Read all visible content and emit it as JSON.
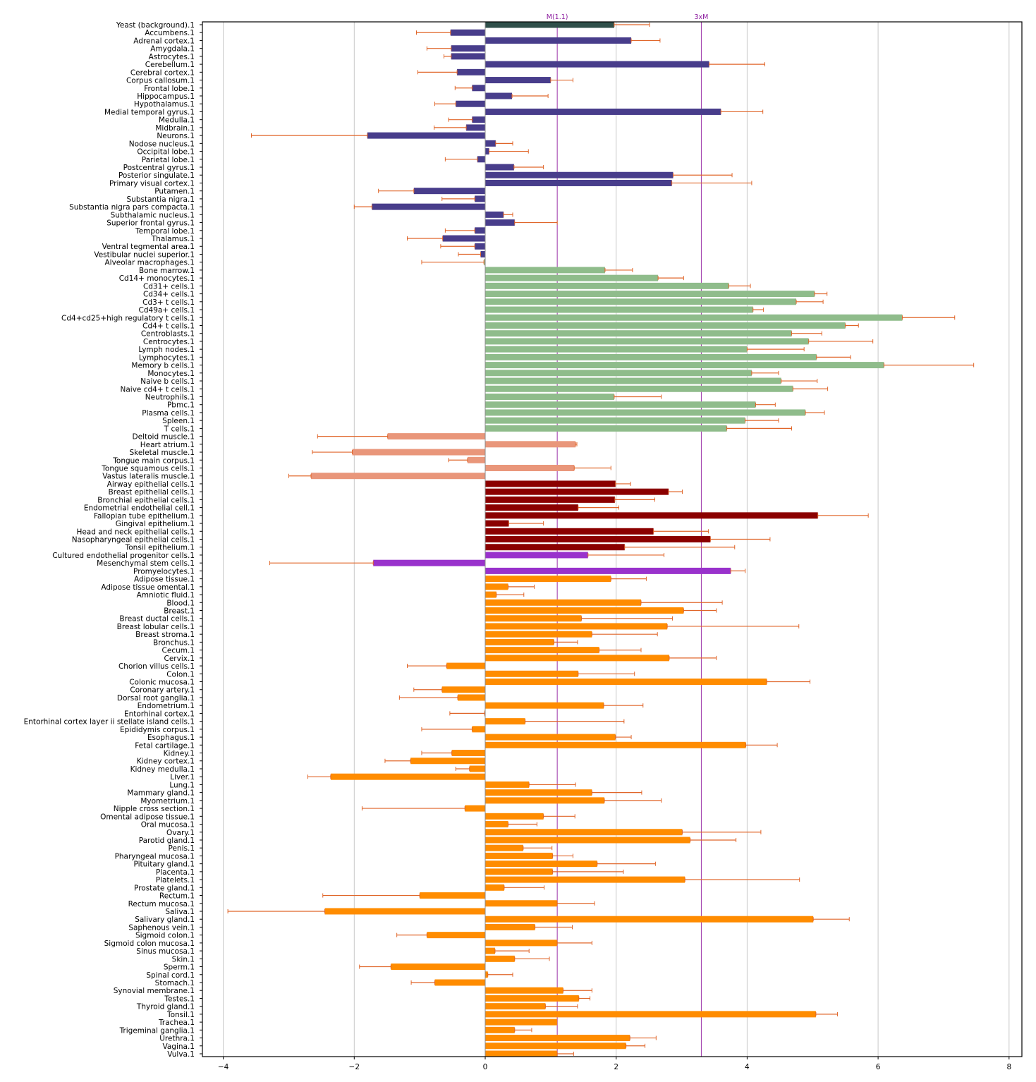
{
  "chart_data": {
    "type": "bar",
    "orientation": "horizontal",
    "title": "",
    "xlabel": "",
    "ylabel": "",
    "xlim": [
      -4.3,
      8.2
    ],
    "xticks": [
      -4,
      -2,
      0,
      2,
      4,
      6,
      8
    ],
    "xtick_labels": [
      "−4",
      "−2",
      "0",
      "2",
      "4",
      "6",
      "8"
    ],
    "grid": "vertical",
    "reference_lines": [
      {
        "label": "M(1.1)",
        "value": 1.1,
        "color": "#9b30a8"
      },
      {
        "label": "3xM",
        "value": 3.3,
        "color": "#9b30a8"
      }
    ],
    "error_bar_color": "#e0662a",
    "group_colors": {
      "background": "#2f4f4a",
      "brain": "#483d8b",
      "immune": "#8fbc8b",
      "muscle": "#e9967a",
      "epithelial": "#8b0000",
      "stem": "#9932cc",
      "tissue": "#ff8c00"
    },
    "bars": [
      {
        "label": "Yeast (background).1",
        "value": 1.97,
        "err": 0.54,
        "group": "background"
      },
      {
        "label": "Accumbens.1",
        "value": -0.53,
        "err": 0.52,
        "group": "brain"
      },
      {
        "label": "Adrenal cortex.1",
        "value": 2.23,
        "err": 0.44,
        "group": "brain"
      },
      {
        "label": "Amygdala.1",
        "value": -0.52,
        "err": 0.37,
        "group": "brain"
      },
      {
        "label": "Astrocytes.1",
        "value": -0.52,
        "err": 0.11,
        "group": "brain"
      },
      {
        "label": "Cerebellum.1",
        "value": 3.42,
        "err": 0.85,
        "group": "brain"
      },
      {
        "label": "Cerebral cortex.1",
        "value": -0.43,
        "err": 0.6,
        "group": "brain"
      },
      {
        "label": "Corpus callosum.1",
        "value": 1.0,
        "err": 0.34,
        "group": "brain"
      },
      {
        "label": "Frontal lobe.1",
        "value": -0.2,
        "err": 0.26,
        "group": "brain"
      },
      {
        "label": "Hippocampus.1",
        "value": 0.41,
        "err": 0.55,
        "group": "brain"
      },
      {
        "label": "Hypothalamus.1",
        "value": -0.45,
        "err": 0.32,
        "group": "brain"
      },
      {
        "label": "Medial temporal gyrus.1",
        "value": 3.6,
        "err": 0.64,
        "group": "brain"
      },
      {
        "label": "Medulla.1",
        "value": -0.2,
        "err": 0.36,
        "group": "brain"
      },
      {
        "label": "Midbrain.1",
        "value": -0.29,
        "err": 0.49,
        "group": "brain"
      },
      {
        "label": "Neurons.1",
        "value": -1.8,
        "err": 1.77,
        "group": "brain"
      },
      {
        "label": "Nodose nucleus.1",
        "value": 0.16,
        "err": 0.26,
        "group": "brain"
      },
      {
        "label": "Occipital lobe.1",
        "value": 0.06,
        "err": 0.6,
        "group": "brain"
      },
      {
        "label": "Parietal lobe.1",
        "value": -0.12,
        "err": 0.49,
        "group": "brain"
      },
      {
        "label": "Postcentral gyrus.1",
        "value": 0.44,
        "err": 0.45,
        "group": "brain"
      },
      {
        "label": "Posterior singulate.1",
        "value": 2.87,
        "err": 0.9,
        "group": "brain"
      },
      {
        "label": "Primary visual cortex.1",
        "value": 2.85,
        "err": 1.22,
        "group": "brain"
      },
      {
        "label": "Putamen.1",
        "value": -1.09,
        "err": 0.54,
        "group": "brain"
      },
      {
        "label": "Substantia nigra.1",
        "value": -0.16,
        "err": 0.5,
        "group": "brain"
      },
      {
        "label": "Substantia nigra pars compacta.1",
        "value": -1.73,
        "err": 0.27,
        "group": "brain"
      },
      {
        "label": "Subthalamic nucleus.1",
        "value": 0.28,
        "err": 0.14,
        "group": "brain"
      },
      {
        "label": "Superior frontal gyrus.1",
        "value": 0.45,
        "err": 0.65,
        "group": "brain"
      },
      {
        "label": "Temporal lobe.1",
        "value": -0.16,
        "err": 0.45,
        "group": "brain"
      },
      {
        "label": "Thalamus.1",
        "value": -0.65,
        "err": 0.54,
        "group": "brain"
      },
      {
        "label": "Ventral tegmental area.1",
        "value": -0.16,
        "err": 0.52,
        "group": "brain"
      },
      {
        "label": "Vestibular nuclei superior.1",
        "value": -0.07,
        "err": 0.34,
        "group": "brain"
      },
      {
        "label": "Alveolar macrophages.1",
        "value": -0.02,
        "err": 0.95,
        "group": "immune"
      },
      {
        "label": "Bone marrow.1",
        "value": 1.83,
        "err": 0.42,
        "group": "immune"
      },
      {
        "label": "Cd14+ monocytes.1",
        "value": 2.64,
        "err": 0.39,
        "group": "immune"
      },
      {
        "label": "Cd31+ cells.1",
        "value": 3.72,
        "err": 0.33,
        "group": "immune"
      },
      {
        "label": "Cd34+ cells.1",
        "value": 5.03,
        "err": 0.19,
        "group": "immune"
      },
      {
        "label": "Cd3+ t cells.1",
        "value": 4.75,
        "err": 0.41,
        "group": "immune"
      },
      {
        "label": "Cd49a+ cells.1",
        "value": 4.09,
        "err": 0.16,
        "group": "immune"
      },
      {
        "label": "Cd4+cd25+high regulatory t cells.1",
        "value": 6.37,
        "err": 0.8,
        "group": "immune"
      },
      {
        "label": "Cd4+ t cells.1",
        "value": 5.5,
        "err": 0.2,
        "group": "immune"
      },
      {
        "label": "Centroblasts.1",
        "value": 4.68,
        "err": 0.46,
        "group": "immune"
      },
      {
        "label": "Centrocytes.1",
        "value": 4.94,
        "err": 0.98,
        "group": "immune"
      },
      {
        "label": "Lymph nodes.1",
        "value": 4.0,
        "err": 0.87,
        "group": "immune"
      },
      {
        "label": "Lymphocytes.1",
        "value": 5.06,
        "err": 0.52,
        "group": "immune"
      },
      {
        "label": "Memory b cells.1",
        "value": 6.09,
        "err": 1.37,
        "group": "immune"
      },
      {
        "label": "Monocytes.1",
        "value": 4.07,
        "err": 0.41,
        "group": "immune"
      },
      {
        "label": "Naive b cells.1",
        "value": 4.52,
        "err": 0.55,
        "group": "immune"
      },
      {
        "label": "Naive cd4+ t cells.1",
        "value": 4.7,
        "err": 0.53,
        "group": "immune"
      },
      {
        "label": "Neutrophils.1",
        "value": 1.97,
        "err": 0.72,
        "group": "immune"
      },
      {
        "label": "Pbmc.1",
        "value": 4.13,
        "err": 0.3,
        "group": "immune"
      },
      {
        "label": "Plasma cells.1",
        "value": 4.89,
        "err": 0.29,
        "group": "immune"
      },
      {
        "label": "Spleen.1",
        "value": 3.97,
        "err": 0.51,
        "group": "immune"
      },
      {
        "label": "T cells.1",
        "value": 3.69,
        "err": 0.99,
        "group": "immune"
      },
      {
        "label": "Deltoid muscle.1",
        "value": -1.49,
        "err": 1.07,
        "group": "muscle"
      },
      {
        "label": "Heart atrium.1",
        "value": 1.38,
        "err": 0.02,
        "group": "muscle"
      },
      {
        "label": "Skeletal muscle.1",
        "value": -2.03,
        "err": 0.61,
        "group": "muscle"
      },
      {
        "label": "Tongue main corpus.1",
        "value": -0.27,
        "err": 0.29,
        "group": "muscle"
      },
      {
        "label": "Tongue squamous cells.1",
        "value": 1.36,
        "err": 0.56,
        "group": "muscle"
      },
      {
        "label": "Vastus lateralis muscle.1",
        "value": -2.66,
        "err": 0.34,
        "group": "muscle"
      },
      {
        "label": "Airway epithelial cells.1",
        "value": 1.99,
        "err": 0.23,
        "group": "epithelial"
      },
      {
        "label": "Breast epithelial cells.1",
        "value": 2.8,
        "err": 0.21,
        "group": "epithelial"
      },
      {
        "label": "Bronchial epithelial cells.1",
        "value": 1.98,
        "err": 0.61,
        "group": "epithelial"
      },
      {
        "label": "Endometrial endothelial cell.1",
        "value": 1.42,
        "err": 0.62,
        "group": "epithelial"
      },
      {
        "label": "Fallopian tube epithelium.1",
        "value": 5.08,
        "err": 0.77,
        "group": "epithelial"
      },
      {
        "label": "Gingival epithelium.1",
        "value": 0.36,
        "err": 0.53,
        "group": "epithelial"
      },
      {
        "label": "Head and neck epithelial cells.1",
        "value": 2.57,
        "err": 0.84,
        "group": "epithelial"
      },
      {
        "label": "Nasopharyngeal epithelial cells.1",
        "value": 3.44,
        "err": 0.91,
        "group": "epithelial"
      },
      {
        "label": "Tonsil epithelium.1",
        "value": 2.13,
        "err": 1.68,
        "group": "epithelial"
      },
      {
        "label": "Cultured endothelial progenitor cells.1",
        "value": 1.57,
        "err": 1.16,
        "group": "stem"
      },
      {
        "label": "Mesenchymal stem cells.1",
        "value": -1.71,
        "err": 1.58,
        "group": "stem"
      },
      {
        "label": "Promyelocytes.1",
        "value": 3.75,
        "err": 0.22,
        "group": "stem"
      },
      {
        "label": "Adipose tissue.1",
        "value": 1.92,
        "err": 0.54,
        "group": "tissue"
      },
      {
        "label": "Adipose tissue omental.1",
        "value": 0.35,
        "err": 0.4,
        "group": "tissue"
      },
      {
        "label": "Amniotic fluid.1",
        "value": 0.17,
        "err": 0.42,
        "group": "tissue"
      },
      {
        "label": "Blood.1",
        "value": 2.38,
        "err": 1.24,
        "group": "tissue"
      },
      {
        "label": "Breast.1",
        "value": 3.03,
        "err": 0.5,
        "group": "tissue"
      },
      {
        "label": "Breast ductal cells.1",
        "value": 1.47,
        "err": 1.39,
        "group": "tissue"
      },
      {
        "label": "Breast lobular cells.1",
        "value": 2.78,
        "err": 2.01,
        "group": "tissue"
      },
      {
        "label": "Breast stroma.1",
        "value": 1.63,
        "err": 1.0,
        "group": "tissue"
      },
      {
        "label": "Bronchus.1",
        "value": 1.05,
        "err": 0.36,
        "group": "tissue"
      },
      {
        "label": "Cecum.1",
        "value": 1.74,
        "err": 0.64,
        "group": "tissue"
      },
      {
        "label": "Cervix.1",
        "value": 2.81,
        "err": 0.72,
        "group": "tissue"
      },
      {
        "label": "Chorion villus cells.1",
        "value": -0.59,
        "err": 0.6,
        "group": "tissue"
      },
      {
        "label": "Colon.1",
        "value": 1.42,
        "err": 0.86,
        "group": "tissue"
      },
      {
        "label": "Colonic mucosa.1",
        "value": 4.3,
        "err": 0.66,
        "group": "tissue"
      },
      {
        "label": "Coronary artery.1",
        "value": -0.66,
        "err": 0.43,
        "group": "tissue"
      },
      {
        "label": "Dorsal root ganglia.1",
        "value": -0.42,
        "err": 0.89,
        "group": "tissue"
      },
      {
        "label": "Endometrium.1",
        "value": 1.81,
        "err": 0.6,
        "group": "tissue"
      },
      {
        "label": "Entorhinal cortex.1",
        "value": -0.01,
        "err": 0.53,
        "group": "tissue"
      },
      {
        "label": "Entorhinal cortex layer ii stellate island cells.1",
        "value": 0.61,
        "err": 1.51,
        "group": "tissue"
      },
      {
        "label": "Epididymis corpus.1",
        "value": -0.2,
        "err": 0.77,
        "group": "tissue"
      },
      {
        "label": "Esophagus.1",
        "value": 1.99,
        "err": 0.24,
        "group": "tissue"
      },
      {
        "label": "Fetal cartilage.1",
        "value": 3.98,
        "err": 0.48,
        "group": "tissue"
      },
      {
        "label": "Kidney.1",
        "value": -0.51,
        "err": 0.46,
        "group": "tissue"
      },
      {
        "label": "Kidney cortex.1",
        "value": -1.14,
        "err": 0.39,
        "group": "tissue"
      },
      {
        "label": "Kidney medulla.1",
        "value": -0.24,
        "err": 0.21,
        "group": "tissue"
      },
      {
        "label": "Liver.1",
        "value": -2.36,
        "err": 0.35,
        "group": "tissue"
      },
      {
        "label": "Lung.1",
        "value": 0.67,
        "err": 0.71,
        "group": "tissue"
      },
      {
        "label": "Mammary gland.1",
        "value": 1.63,
        "err": 0.76,
        "group": "tissue"
      },
      {
        "label": "Myometrium.1",
        "value": 1.82,
        "err": 0.87,
        "group": "tissue"
      },
      {
        "label": "Nipple cross section.1",
        "value": -0.31,
        "err": 1.57,
        "group": "tissue"
      },
      {
        "label": "Omental adipose tissue.1",
        "value": 0.89,
        "err": 0.48,
        "group": "tissue"
      },
      {
        "label": "Oral mucosa.1",
        "value": 0.35,
        "err": 0.44,
        "group": "tissue"
      },
      {
        "label": "Ovary.1",
        "value": 3.01,
        "err": 1.2,
        "group": "tissue"
      },
      {
        "label": "Parotid gland.1",
        "value": 3.13,
        "err": 0.7,
        "group": "tissue"
      },
      {
        "label": "Penis.1",
        "value": 0.58,
        "err": 0.44,
        "group": "tissue"
      },
      {
        "label": "Pharyngeal mucosa.1",
        "value": 1.03,
        "err": 0.31,
        "group": "tissue"
      },
      {
        "label": "Pituitary gland.1",
        "value": 1.71,
        "err": 0.89,
        "group": "tissue"
      },
      {
        "label": "Placenta.1",
        "value": 1.03,
        "err": 1.08,
        "group": "tissue"
      },
      {
        "label": "Platelets.1",
        "value": 3.05,
        "err": 1.75,
        "group": "tissue"
      },
      {
        "label": "Prostate gland.1",
        "value": 0.29,
        "err": 0.61,
        "group": "tissue"
      },
      {
        "label": "Rectum.1",
        "value": -1.0,
        "err": 1.48,
        "group": "tissue"
      },
      {
        "label": "Rectum mucosa.1",
        "value": 1.1,
        "err": 0.57,
        "group": "tissue"
      },
      {
        "label": "Saliva.1",
        "value": -2.45,
        "err": 1.48,
        "group": "tissue"
      },
      {
        "label": "Salivary gland.1",
        "value": 5.01,
        "err": 0.55,
        "group": "tissue"
      },
      {
        "label": "Saphenous vein.1",
        "value": 0.76,
        "err": 0.57,
        "group": "tissue"
      },
      {
        "label": "Sigmoid colon.1",
        "value": -0.89,
        "err": 0.46,
        "group": "tissue"
      },
      {
        "label": "Sigmoid colon mucosa.1",
        "value": 1.1,
        "err": 0.53,
        "group": "tissue"
      },
      {
        "label": "Sinus mucosa.1",
        "value": 0.15,
        "err": 0.52,
        "group": "tissue"
      },
      {
        "label": "Skin.1",
        "value": 0.45,
        "err": 0.53,
        "group": "tissue"
      },
      {
        "label": "Sperm.1",
        "value": -1.44,
        "err": 0.48,
        "group": "tissue"
      },
      {
        "label": "Spinal cord.1",
        "value": 0.04,
        "err": 0.38,
        "group": "tissue"
      },
      {
        "label": "Stomach.1",
        "value": -0.77,
        "err": 0.36,
        "group": "tissue"
      },
      {
        "label": "Synovial membrane.1",
        "value": 1.19,
        "err": 0.44,
        "group": "tissue"
      },
      {
        "label": "Testes.1",
        "value": 1.43,
        "err": 0.17,
        "group": "tissue"
      },
      {
        "label": "Thyroid gland.1",
        "value": 0.92,
        "err": 0.49,
        "group": "tissue"
      },
      {
        "label": "Tonsil.1",
        "value": 5.05,
        "err": 0.33,
        "group": "tissue"
      },
      {
        "label": "Trachea.1",
        "value": 1.1,
        "err": 0.0,
        "group": "tissue"
      },
      {
        "label": "Trigeminal ganglia.1",
        "value": 0.45,
        "err": 0.26,
        "group": "tissue"
      },
      {
        "label": "Urethra.1",
        "value": 2.21,
        "err": 0.4,
        "group": "tissue"
      },
      {
        "label": "Vagina.1",
        "value": 2.15,
        "err": 0.29,
        "group": "tissue"
      },
      {
        "label": "Vulva.1",
        "value": 1.1,
        "err": 0.25,
        "group": "tissue"
      }
    ]
  }
}
